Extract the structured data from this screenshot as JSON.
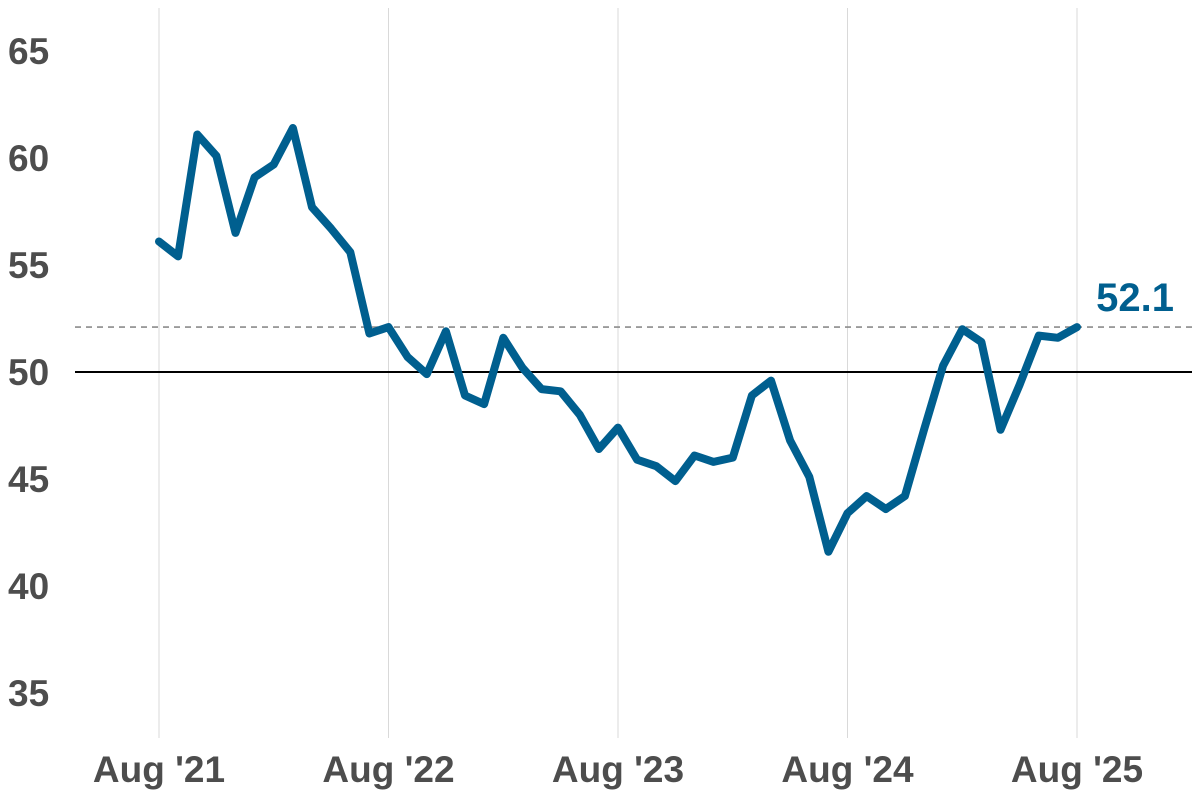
{
  "chart_data": {
    "type": "line",
    "title": "",
    "xlabel": "",
    "ylabel": "",
    "ylim": [
      33,
      66
    ],
    "yticks": [
      35,
      40,
      45,
      50,
      55,
      60,
      65
    ],
    "xticks": [
      "Aug '21",
      "Aug '22",
      "Aug '23",
      "Aug '24",
      "Aug '25"
    ],
    "grid": "vertical at x tick positions",
    "reference_line": 50,
    "latest_value_line": 52.1,
    "series": [
      {
        "color": "#005f8f",
        "x": [
          "2021-08",
          "2021-09",
          "2021-10",
          "2021-11",
          "2021-12",
          "2022-01",
          "2022-02",
          "2022-03",
          "2022-04",
          "2022-05",
          "2022-06",
          "2022-07",
          "2022-08",
          "2022-09",
          "2022-10",
          "2022-11",
          "2022-12",
          "2023-01",
          "2023-02",
          "2023-03",
          "2023-04",
          "2023-05",
          "2023-06",
          "2023-07",
          "2023-08",
          "2023-09",
          "2023-10",
          "2023-11",
          "2023-12",
          "2024-01",
          "2024-02",
          "2024-03",
          "2024-04",
          "2024-05",
          "2024-06",
          "2024-07",
          "2024-08",
          "2024-09",
          "2024-10",
          "2024-11",
          "2024-12",
          "2025-01",
          "2025-02",
          "2025-03",
          "2025-04",
          "2025-05",
          "2025-06",
          "2025-07",
          "2025-08"
        ],
        "values": [
          56.1,
          55.4,
          61.1,
          60.1,
          56.5,
          59.1,
          59.7,
          61.4,
          57.7,
          56.7,
          55.6,
          51.8,
          52.1,
          50.7,
          49.9,
          51.9,
          48.9,
          48.5,
          51.6,
          50.2,
          49.2,
          49.1,
          48.0,
          46.4,
          47.4,
          45.9,
          45.6,
          44.9,
          46.1,
          45.8,
          46.0,
          48.9,
          49.6,
          46.8,
          45.1,
          41.6,
          43.4,
          44.2,
          43.6,
          44.2,
          47.3,
          50.3,
          52.0,
          51.4,
          47.3,
          49.4,
          51.7,
          51.6,
          52.1
        ]
      }
    ],
    "end_label": "52.1",
    "colors": {
      "series": "#005f8f",
      "grid": "#d9d9d9",
      "reference": "#000000",
      "dashed": "#8c8c8c",
      "tick_text": "#4d4d4d"
    }
  }
}
